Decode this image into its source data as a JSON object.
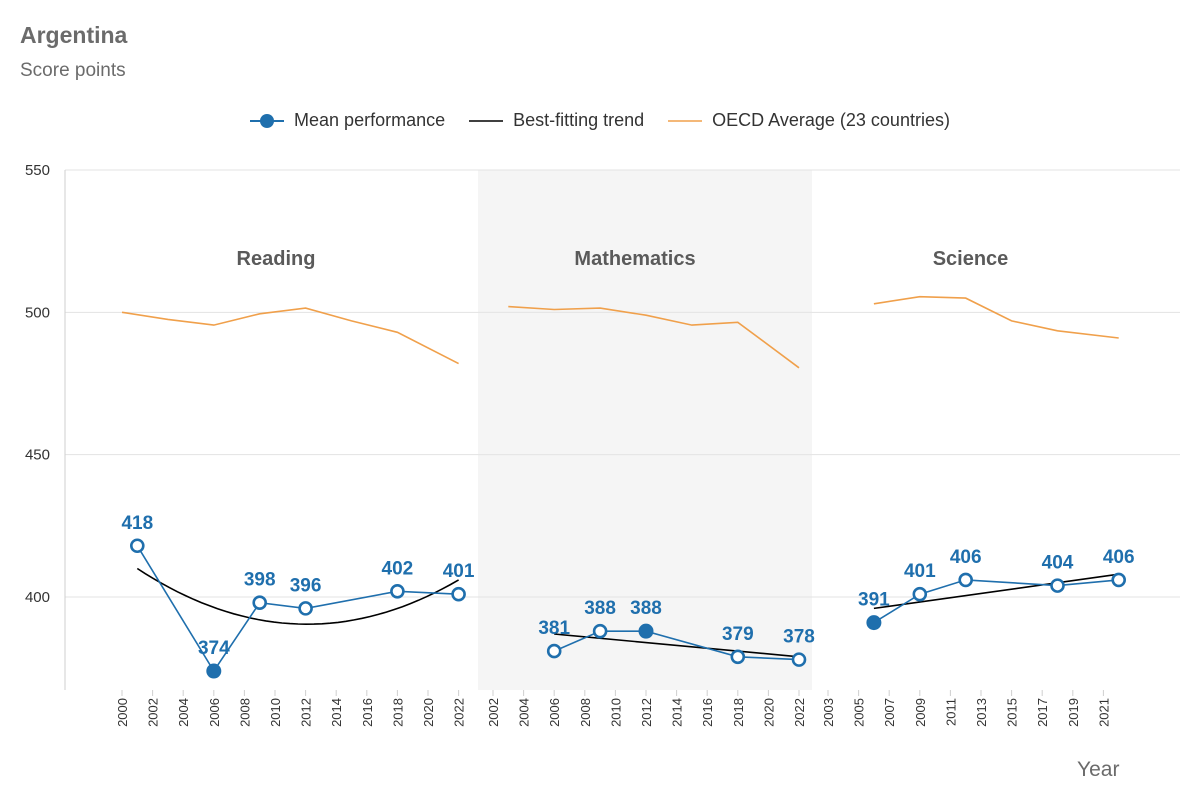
{
  "title": "Argentina",
  "subtitle": "Score points",
  "xlabel": "Year",
  "legend": {
    "mean": "Mean performance",
    "trend": "Best-fitting trend",
    "oecd": "OECD Average (23 countries)"
  },
  "colors": {
    "mean": "#1f6fad",
    "trend": "#000000",
    "oecd": "#f0a04b",
    "shade": "#f5f5f5"
  },
  "chart_data": {
    "type": "line",
    "ylim": [
      370,
      550
    ],
    "yticks": [
      400,
      450,
      500,
      550
    ],
    "grid": true,
    "legend_position": "top-center",
    "panels": [
      {
        "label": "Reading",
        "ticks": [
          "2000",
          "2002",
          "2004",
          "2006",
          "2008",
          "2010",
          "2012",
          "2014",
          "2016",
          "2018",
          "2020",
          "2022"
        ],
        "xlim": [
          2000,
          2023
        ],
        "shaded": false,
        "mean": [
          {
            "x": 2001,
            "y": 418,
            "label": "418",
            "filled": false
          },
          {
            "x": 2006,
            "y": 374,
            "label": "374",
            "filled": true
          },
          {
            "x": 2009,
            "y": 398,
            "label": "398",
            "filled": false
          },
          {
            "x": 2012,
            "y": 396,
            "label": "396",
            "filled": false
          },
          {
            "x": 2018,
            "y": 402,
            "label": "402",
            "filled": false
          },
          {
            "x": 2022,
            "y": 401,
            "label": "401",
            "filled": false
          }
        ],
        "trend": {
          "kind": "quadratic",
          "points": [
            [
              2001,
              410
            ],
            [
              2011.5,
              390.5
            ],
            [
              2022,
              406
            ]
          ]
        },
        "oecd": [
          [
            2000,
            500
          ],
          [
            2003,
            497.5
          ],
          [
            2006,
            495.5
          ],
          [
            2009,
            499.5
          ],
          [
            2012,
            501.5
          ],
          [
            2015,
            497
          ],
          [
            2018,
            493
          ],
          [
            2022,
            482
          ]
        ]
      },
      {
        "label": "Mathematics",
        "ticks": [
          "2002",
          "2004",
          "2006",
          "2008",
          "2010",
          "2012",
          "2014",
          "2016",
          "2018",
          "2020",
          "2022"
        ],
        "xlim": [
          2002,
          2023
        ],
        "shaded": true,
        "mean": [
          {
            "x": 2006,
            "y": 381,
            "label": "381",
            "filled": false
          },
          {
            "x": 2009,
            "y": 388,
            "label": "388",
            "filled": false
          },
          {
            "x": 2012,
            "y": 388,
            "label": "388",
            "filled": true
          },
          {
            "x": 2018,
            "y": 379,
            "label": "379",
            "filled": false
          },
          {
            "x": 2022,
            "y": 378,
            "label": "378",
            "filled": false
          }
        ],
        "trend": {
          "kind": "linear",
          "points": [
            [
              2006,
              387
            ],
            [
              2022,
              379
            ]
          ]
        },
        "oecd": [
          [
            2003,
            502
          ],
          [
            2006,
            501
          ],
          [
            2009,
            501.5
          ],
          [
            2012,
            499
          ],
          [
            2015,
            495.5
          ],
          [
            2018,
            496.5
          ],
          [
            2022,
            480.5
          ]
        ]
      },
      {
        "label": "Science",
        "ticks": [
          "2003",
          "2005",
          "2007",
          "2009",
          "2011",
          "2013",
          "2015",
          "2017",
          "2019",
          "2021"
        ],
        "xlim": [
          2003,
          2023
        ],
        "shaded": false,
        "mean": [
          {
            "x": 2006,
            "y": 391,
            "label": "391",
            "filled": true
          },
          {
            "x": 2009,
            "y": 401,
            "label": "401",
            "filled": false
          },
          {
            "x": 2012,
            "y": 406,
            "label": "406",
            "filled": false
          },
          {
            "x": 2018,
            "y": 404,
            "label": "404",
            "filled": false
          },
          {
            "x": 2022,
            "y": 406,
            "label": "406",
            "filled": false
          }
        ],
        "trend": {
          "kind": "linear",
          "points": [
            [
              2006,
              396
            ],
            [
              2022,
              408
            ]
          ]
        },
        "oecd": [
          [
            2006,
            503
          ],
          [
            2009,
            505.5
          ],
          [
            2012,
            505
          ],
          [
            2015,
            497
          ],
          [
            2018,
            493.5
          ],
          [
            2022,
            491
          ]
        ]
      }
    ]
  }
}
